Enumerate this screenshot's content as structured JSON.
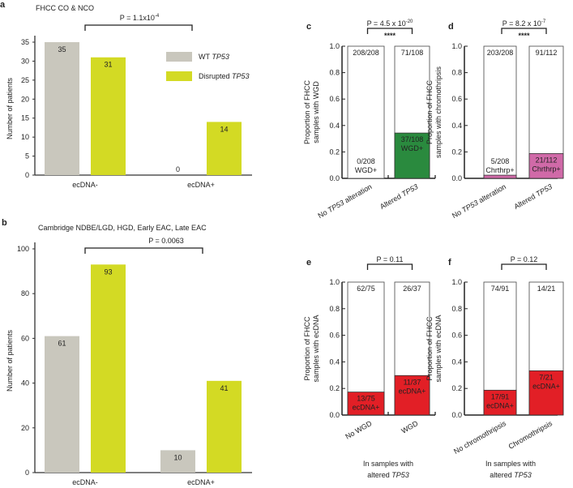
{
  "colors": {
    "wt": "#c9c7bd",
    "disrupted": "#d3da24",
    "wgd": "#2a8a3e",
    "chromo": "#d06aa8",
    "ecdna": "#e21f26",
    "empty": "#ffffff"
  },
  "chart_data": [
    {
      "id": "a",
      "type": "bar",
      "panel_letter": "a",
      "title": "FHCC CO & NCO",
      "ylabel": "Number of patients",
      "ylim": [
        0,
        35
      ],
      "yticks": [
        0,
        5,
        10,
        15,
        20,
        25,
        30,
        35
      ],
      "categories": [
        "ecDNA-",
        "ecDNA+"
      ],
      "series": [
        {
          "name": "WT TP53",
          "values": [
            35,
            0
          ]
        },
        {
          "name": "Disrupted TP53",
          "values": [
            31,
            14
          ]
        }
      ],
      "pvalue": "P = 1.1x10",
      "pvalue_exp": "-4",
      "legend": "top-right"
    },
    {
      "id": "b",
      "type": "bar",
      "panel_letter": "b",
      "title": "Cambridge NDBE/LGD, HGD, Early EAC, Late EAC",
      "ylabel": "Number of patients",
      "ylim": [
        0,
        100
      ],
      "yticks": [
        0,
        20,
        40,
        60,
        80,
        100
      ],
      "categories": [
        "ecDNA-",
        "ecDNA+"
      ],
      "series": [
        {
          "name": "WT TP53",
          "values": [
            61,
            10
          ]
        },
        {
          "name": "Disrupted TP53",
          "values": [
            93,
            41
          ]
        }
      ],
      "pvalue": "P = 0.0063",
      "pvalue_exp": ""
    },
    {
      "id": "c",
      "type": "bar",
      "stacked": true,
      "panel_letter": "c",
      "ylabel": [
        "Proportion of FHCC",
        "samples with WGD"
      ],
      "ylim": [
        0,
        1
      ],
      "yticks": [
        "0.0",
        "0.2",
        "0.4",
        "0.6",
        "0.8",
        "1.0"
      ],
      "categories": [
        "No TP53 alteration",
        "Altered TP53"
      ],
      "fractions": [
        0,
        0.343
      ],
      "top_labels": [
        "208/208",
        "71/108"
      ],
      "bottom_labels": [
        [
          "0/208",
          "WGD+"
        ],
        [
          "37/108",
          "WGD+"
        ]
      ],
      "pvalue": "P = 4.5 x 10",
      "pvalue_exp": "-20",
      "stars": "****",
      "color": "wgd"
    },
    {
      "id": "d",
      "type": "bar",
      "stacked": true,
      "panel_letter": "d",
      "ylabel": [
        "Proportion of FHCC",
        "samples with chromothripsis"
      ],
      "ylim": [
        0,
        1
      ],
      "yticks": [
        "0.0",
        "0.2",
        "0.4",
        "0.6",
        "0.8",
        "1.0"
      ],
      "categories": [
        "No TP53 alteration",
        "Altered TP53"
      ],
      "fractions": [
        0.024,
        0.1875
      ],
      "top_labels": [
        "203/208",
        "91/112"
      ],
      "bottom_labels": [
        [
          "5/208",
          "Chrthrp+"
        ],
        [
          "21/112",
          "Chrthrp+"
        ]
      ],
      "pvalue": "P = 8.2 x 10",
      "pvalue_exp": "-7",
      "stars": "****",
      "color": "chromo"
    },
    {
      "id": "e",
      "type": "bar",
      "stacked": true,
      "panel_letter": "e",
      "ylabel": [
        "Proportion of FHCC",
        "samples with ecDNA"
      ],
      "ylim": [
        0,
        1
      ],
      "yticks": [
        "0.0",
        "0.2",
        "0.4",
        "0.6",
        "0.8",
        "1.0"
      ],
      "categories": [
        "No WGD",
        "WGD"
      ],
      "fractions": [
        0.173,
        0.297
      ],
      "top_labels": [
        "62/75",
        "26/37"
      ],
      "bottom_labels": [
        [
          "13/75",
          "ecDNA+"
        ],
        [
          "11/37",
          "ecDNA+"
        ]
      ],
      "pvalue": "P = 0.11",
      "pvalue_exp": "",
      "stars": "",
      "color": "ecdna",
      "xlabel": [
        "In samples with",
        "altered TP53"
      ]
    },
    {
      "id": "f",
      "type": "bar",
      "stacked": true,
      "panel_letter": "f",
      "ylabel": [
        "Proportion of FHCC",
        "samples with ecDNA"
      ],
      "ylim": [
        0,
        1
      ],
      "yticks": [
        "0.0",
        "0.2",
        "0.4",
        "0.6",
        "0.8",
        "1.0"
      ],
      "categories": [
        "No chromothripsis",
        "Chromothripsis"
      ],
      "fractions": [
        0.187,
        0.333
      ],
      "top_labels": [
        "74/91",
        "14/21"
      ],
      "bottom_labels": [
        [
          "17/91",
          "ecDNA+"
        ],
        [
          "7/21",
          "ecDNA+"
        ]
      ],
      "pvalue": "P = 0.12",
      "pvalue_exp": "",
      "stars": "",
      "color": "ecdna",
      "xlabel": [
        "In samples with",
        "altered TP53"
      ]
    }
  ]
}
